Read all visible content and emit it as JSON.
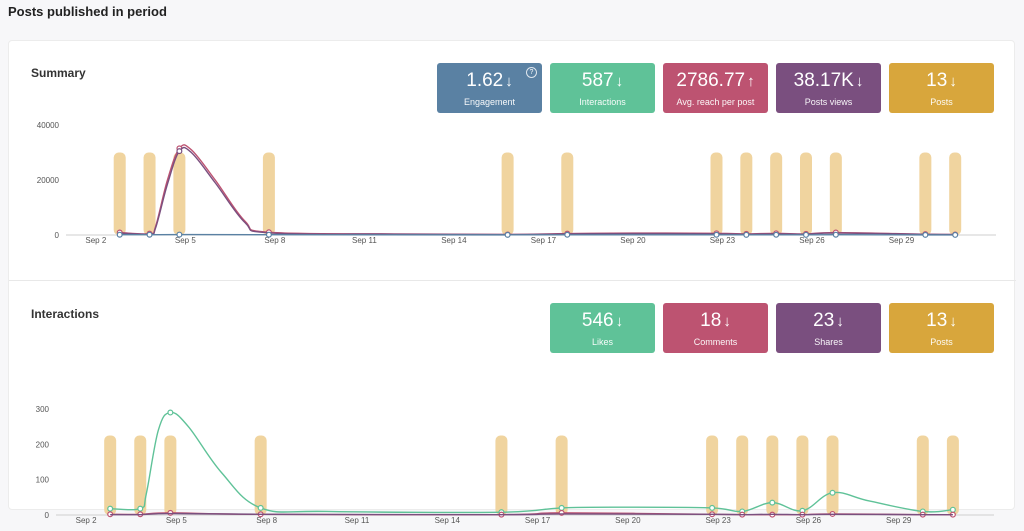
{
  "page": {
    "title": "Posts published in period"
  },
  "summary": {
    "title": "Summary",
    "kpis": [
      {
        "value": "1.62",
        "trend": "down",
        "label": "Engagement",
        "color": "#5a81a3",
        "help": true
      },
      {
        "value": "587",
        "trend": "down",
        "label": "Interactions",
        "color": "#5fc298"
      },
      {
        "value": "2786.77",
        "trend": "up",
        "label": "Avg. reach per post",
        "color": "#bd5371"
      },
      {
        "value": "38.17K",
        "trend": "down",
        "label": "Posts views",
        "color": "#7a4f7f"
      },
      {
        "value": "13",
        "trend": "down",
        "label": "Posts",
        "color": "#d8a63c"
      }
    ]
  },
  "interactions": {
    "title": "Interactions",
    "kpis": [
      {
        "value": "546",
        "trend": "down",
        "label": "Likes",
        "color": "#5fc298"
      },
      {
        "value": "18",
        "trend": "down",
        "label": "Comments",
        "color": "#bd5371"
      },
      {
        "value": "23",
        "trend": "down",
        "label": "Shares",
        "color": "#7a4f7f"
      },
      {
        "value": "13",
        "trend": "down",
        "label": "Posts",
        "color": "#d8a63c"
      }
    ]
  },
  "chart_data": [
    {
      "type": "line",
      "name": "summary-chart",
      "x_range": [
        1,
        32
      ],
      "x_ticks": [
        2,
        5,
        8,
        11,
        14,
        17,
        20,
        23,
        26,
        29
      ],
      "x_tick_labels": [
        "Sep 2",
        "Sep 5",
        "Sep 8",
        "Sep 11",
        "Sep 14",
        "Sep 17",
        "Sep 20",
        "Sep 23",
        "Sep 26",
        "Sep 29"
      ],
      "y_ticks": [
        0,
        20000,
        40000
      ],
      "ylim": [
        0,
        40000
      ],
      "post_days": [
        2.8,
        3.8,
        4.8,
        7.8,
        15.8,
        17.8,
        22.8,
        23.8,
        24.8,
        25.8,
        26.8,
        29.8,
        30.8
      ],
      "post_bar_value": 30000,
      "post_bar_color": "#f0d49f",
      "grid": false,
      "legend": "none",
      "series": [
        {
          "color": "#bd5371",
          "points": [
            [
              2.8,
              900
            ],
            [
              3.8,
              500
            ],
            [
              4.0,
              3000
            ],
            [
              4.4,
              20000
            ],
            [
              4.8,
              31500
            ],
            [
              5.2,
              31000
            ],
            [
              6.0,
              20000
            ],
            [
              7.0,
              5000
            ],
            [
              7.8,
              1000
            ],
            [
              12,
              400
            ],
            [
              15.8,
              200
            ],
            [
              17.8,
              500
            ],
            [
              20,
              700
            ],
            [
              22.8,
              600
            ],
            [
              23.8,
              400
            ],
            [
              24.8,
              600
            ],
            [
              25.8,
              400
            ],
            [
              26.8,
              900
            ],
            [
              29.8,
              300
            ],
            [
              30.8,
              200
            ]
          ],
          "markers": [
            [
              2.8,
              900
            ],
            [
              3.8,
              500
            ],
            [
              4.8,
              31500
            ],
            [
              7.8,
              1000
            ],
            [
              15.8,
              200
            ],
            [
              17.8,
              500
            ],
            [
              22.8,
              600
            ],
            [
              23.8,
              400
            ],
            [
              24.8,
              600
            ],
            [
              25.8,
              400
            ],
            [
              26.8,
              900
            ],
            [
              29.8,
              300
            ],
            [
              30.8,
              200
            ]
          ]
        },
        {
          "color": "#7a4f7f",
          "points": [
            [
              2.8,
              700
            ],
            [
              3.8,
              400
            ],
            [
              4.0,
              2500
            ],
            [
              4.4,
              18500
            ],
            [
              4.8,
              30500
            ],
            [
              5.2,
              30000
            ],
            [
              6.0,
              19000
            ],
            [
              7.0,
              4500
            ],
            [
              7.8,
              800
            ],
            [
              12,
              300
            ],
            [
              15.8,
              150
            ],
            [
              17.8,
              400
            ],
            [
              20,
              500
            ],
            [
              22.8,
              450
            ],
            [
              23.8,
              300
            ],
            [
              24.8,
              450
            ],
            [
              25.8,
              300
            ],
            [
              26.8,
              700
            ],
            [
              29.8,
              250
            ],
            [
              30.8,
              150
            ]
          ],
          "markers": [
            [
              4.8,
              30500
            ]
          ]
        },
        {
          "color": "#5a81a3",
          "points": [
            [
              2.8,
              100
            ],
            [
              3.8,
              100
            ],
            [
              4.8,
              150
            ],
            [
              7.8,
              100
            ],
            [
              15.8,
              50
            ],
            [
              17.8,
              80
            ],
            [
              22.8,
              80
            ],
            [
              23.8,
              60
            ],
            [
              24.8,
              80
            ],
            [
              25.8,
              60
            ],
            [
              26.8,
              100
            ],
            [
              29.8,
              50
            ],
            [
              30.8,
              40
            ]
          ],
          "markers": [
            [
              2.8,
              100
            ],
            [
              3.8,
              100
            ],
            [
              4.8,
              150
            ],
            [
              7.8,
              100
            ],
            [
              15.8,
              50
            ],
            [
              17.8,
              80
            ],
            [
              22.8,
              80
            ],
            [
              23.8,
              60
            ],
            [
              24.8,
              80
            ],
            [
              25.8,
              60
            ],
            [
              26.8,
              100
            ],
            [
              29.8,
              50
            ],
            [
              30.8,
              40
            ]
          ]
        }
      ]
    },
    {
      "type": "line",
      "name": "interactions-chart",
      "x_range": [
        1,
        32
      ],
      "x_ticks": [
        2,
        5,
        8,
        11,
        14,
        17,
        20,
        23,
        26,
        29
      ],
      "x_tick_labels": [
        "Sep 2",
        "Sep 5",
        "Sep 8",
        "Sep 11",
        "Sep 14",
        "Sep 17",
        "Sep 20",
        "Sep 23",
        "Sep 26",
        "Sep 29"
      ],
      "y_ticks": [
        0,
        100,
        200,
        300
      ],
      "ylim": [
        0,
        300
      ],
      "post_days": [
        2.8,
        3.8,
        4.8,
        7.8,
        15.8,
        17.8,
        22.8,
        23.8,
        24.8,
        25.8,
        26.8,
        29.8,
        30.8
      ],
      "post_bar_value": 225,
      "post_bar_color": "#f0d49f",
      "grid": false,
      "legend": "none",
      "series": [
        {
          "color": "#5fc298",
          "points": [
            [
              2.8,
              18
            ],
            [
              3.8,
              18
            ],
            [
              4.0,
              60
            ],
            [
              4.4,
              240
            ],
            [
              4.8,
              290
            ],
            [
              5.4,
              250
            ],
            [
              6.5,
              120
            ],
            [
              7.8,
              20
            ],
            [
              10,
              10
            ],
            [
              15.8,
              8
            ],
            [
              17.8,
              20
            ],
            [
              20,
              22
            ],
            [
              22.8,
              20
            ],
            [
              23.8,
              10
            ],
            [
              24.8,
              35
            ],
            [
              25.8,
              12
            ],
            [
              26.8,
              63
            ],
            [
              28,
              40
            ],
            [
              29.8,
              10
            ],
            [
              30.8,
              15
            ]
          ],
          "markers": [
            [
              2.8,
              18
            ],
            [
              3.8,
              18
            ],
            [
              4.8,
              290
            ],
            [
              7.8,
              20
            ],
            [
              15.8,
              8
            ],
            [
              17.8,
              20
            ],
            [
              22.8,
              20
            ],
            [
              23.8,
              10
            ],
            [
              24.8,
              35
            ],
            [
              25.8,
              12
            ],
            [
              26.8,
              63
            ],
            [
              29.8,
              10
            ],
            [
              30.8,
              15
            ]
          ]
        },
        {
          "color": "#bd5371",
          "points": [
            [
              2.8,
              2
            ],
            [
              3.8,
              2
            ],
            [
              4.8,
              6
            ],
            [
              7.8,
              2
            ],
            [
              15.8,
              1
            ],
            [
              17.8,
              6
            ],
            [
              22.8,
              2
            ],
            [
              23.8,
              1
            ],
            [
              24.8,
              1
            ],
            [
              25.8,
              1
            ],
            [
              26.8,
              3
            ],
            [
              29.8,
              1
            ],
            [
              30.8,
              1
            ]
          ],
          "markers": [
            [
              2.8,
              2
            ],
            [
              3.8,
              2
            ],
            [
              4.8,
              6
            ],
            [
              7.8,
              2
            ],
            [
              15.8,
              1
            ],
            [
              17.8,
              6
            ],
            [
              22.8,
              2
            ],
            [
              23.8,
              1
            ],
            [
              24.8,
              1
            ],
            [
              25.8,
              1
            ],
            [
              26.8,
              3
            ],
            [
              29.8,
              1
            ],
            [
              30.8,
              1
            ]
          ]
        },
        {
          "color": "#7a4f7f",
          "points": [
            [
              2.8,
              1
            ],
            [
              3.8,
              1
            ],
            [
              4.8,
              4
            ],
            [
              7.8,
              2
            ],
            [
              15.8,
              1
            ],
            [
              17.8,
              3
            ],
            [
              22.8,
              2
            ],
            [
              23.8,
              1
            ],
            [
              24.8,
              2
            ],
            [
              25.8,
              1
            ],
            [
              26.8,
              2
            ],
            [
              29.8,
              1
            ],
            [
              30.8,
              1
            ]
          ],
          "markers": []
        }
      ]
    }
  ]
}
